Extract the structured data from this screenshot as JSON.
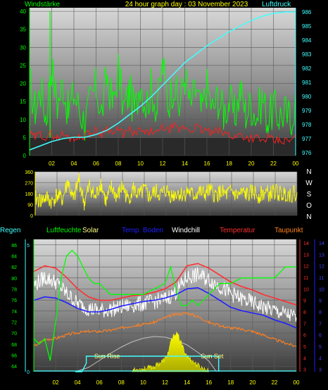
{
  "chart_data": [
    {
      "id": "wind_pressure",
      "type": "line",
      "title": "24 hour graph day : 03 November 2023",
      "left_label": "Windstärke",
      "right_label": "Luftdruck",
      "x_ticks": [
        "02",
        "04",
        "06",
        "08",
        "10",
        "12",
        "14",
        "16",
        "18",
        "20",
        "22",
        "00"
      ],
      "y_left_ticks": [
        0,
        5,
        10,
        15,
        20,
        25,
        30,
        35,
        40
      ],
      "y_left_range": [
        0,
        41
      ],
      "y_right_ticks": [
        976,
        977,
        978,
        979,
        980,
        981,
        982,
        983,
        984,
        985,
        986
      ],
      "y_right_range": [
        975.8,
        986.3
      ],
      "series": [
        {
          "kind": "wind_gust",
          "color": "#00ff00",
          "x": [
            0,
            0.5,
            1,
            1.5,
            2,
            2.5,
            3,
            3.5,
            4,
            4.5,
            5,
            5.5,
            6,
            6.5,
            7,
            7.5,
            8,
            8.5,
            9,
            9.5,
            10,
            10.5,
            11,
            11.5,
            12,
            12.5,
            13,
            13.5,
            14,
            14.5,
            15,
            15.5,
            16,
            16.5,
            17,
            17.5,
            18,
            18.5,
            19,
            19.5,
            20,
            20.5,
            21,
            21.5,
            22,
            22.5,
            23,
            23.5,
            24
          ],
          "y": [
            20,
            13,
            18,
            11,
            25,
            14,
            20,
            12,
            17,
            13,
            9,
            15,
            19,
            12,
            22,
            14,
            24,
            13,
            18,
            12,
            21,
            14,
            19,
            13,
            25,
            15,
            20,
            13,
            22,
            14,
            18,
            12,
            19,
            13,
            16,
            12,
            15,
            11,
            18,
            12,
            14,
            11,
            16,
            10,
            13,
            11,
            12,
            10,
            15
          ]
        },
        {
          "kind": "wind_avg",
          "color": "#ff2020",
          "x": [
            0,
            0.5,
            1,
            1.5,
            2,
            2.5,
            3,
            3.5,
            4,
            4.5,
            5,
            5.5,
            6,
            6.5,
            7,
            7.5,
            8,
            8.5,
            9,
            9.5,
            10,
            10.5,
            11,
            11.5,
            12,
            12.5,
            13,
            13.5,
            14,
            14.5,
            15,
            15.5,
            16,
            16.5,
            17,
            17.5,
            18,
            18.5,
            19,
            19.5,
            20,
            20.5,
            21,
            21.5,
            22,
            22.5,
            23,
            23.5,
            24
          ],
          "y": [
            6,
            5,
            6,
            5,
            6,
            5,
            6,
            5,
            5,
            5,
            6,
            6,
            7,
            6,
            8,
            6,
            7,
            6,
            7,
            6,
            7,
            6,
            7,
            6,
            8,
            7,
            8,
            7,
            8,
            7,
            8,
            7,
            7,
            6,
            7,
            6,
            6,
            5,
            6,
            5,
            5,
            5,
            4,
            5,
            4,
            4,
            4,
            4,
            5
          ]
        },
        {
          "kind": "pressure",
          "color": "#40ffff",
          "x": [
            0,
            1,
            2,
            3,
            4,
            5,
            6,
            7,
            8,
            9,
            10,
            11,
            12,
            13,
            14,
            15,
            16,
            17,
            18,
            19,
            20,
            21,
            22,
            23,
            24
          ],
          "y": [
            976.2,
            976.5,
            976.8,
            977.0,
            977.1,
            977.1,
            977.3,
            977.6,
            978.1,
            978.7,
            979.3,
            980.0,
            980.8,
            981.6,
            982.4,
            983.0,
            983.6,
            984.1,
            984.6,
            985.0,
            985.4,
            985.7,
            985.9,
            986.0,
            986.0
          ]
        }
      ]
    },
    {
      "id": "wind_direction",
      "type": "line",
      "y_ticks": [
        0,
        90,
        180,
        270,
        360
      ],
      "y_range": [
        0,
        360
      ],
      "right_labels": [
        "N",
        "W",
        "S",
        "O",
        "N"
      ],
      "series": [
        {
          "kind": "direction",
          "color": "#ffff00",
          "x": [
            0,
            0.5,
            1,
            1.5,
            2,
            2.5,
            3,
            3.5,
            4,
            4.5,
            5,
            5.5,
            6,
            6.5,
            7,
            7.5,
            8,
            8.5,
            9,
            9.5,
            10,
            10.5,
            11,
            11.5,
            12,
            12.5,
            13,
            13.5,
            14,
            14.5,
            15,
            15.5,
            16,
            16.5,
            17,
            17.5,
            18,
            18.5,
            19,
            19.5,
            20,
            20.5,
            21,
            21.5,
            22,
            22.5,
            23,
            23.5,
            24
          ],
          "y": [
            140,
            120,
            150,
            110,
            170,
            130,
            280,
            120,
            300,
            100,
            250,
            140,
            270,
            110,
            230,
            150,
            240,
            130,
            220,
            160,
            210,
            150,
            200,
            170,
            210,
            160,
            190,
            170,
            200,
            160,
            195,
            175,
            205,
            165,
            190,
            170,
            200,
            160,
            185,
            170,
            195,
            165,
            190,
            175,
            200,
            170,
            185,
            175,
            190
          ]
        }
      ]
    },
    {
      "id": "temp_hum",
      "type": "line",
      "legend": [
        "Regen",
        "Luftfeuchte",
        "Solar",
        "Temp. Boden",
        "Windchill",
        "Temperatur",
        "Taupunkt"
      ],
      "legend_colors": [
        "#40ffff",
        "#00ff00",
        "#ffff80",
        "#2020ff",
        "#ffffff",
        "#ff3030",
        "#ff8020"
      ],
      "x_ticks": [
        "02",
        "04",
        "06",
        "08",
        "10",
        "12",
        "14",
        "16",
        "18",
        "20",
        "22",
        "00"
      ],
      "y_left_ticks": [
        64,
        66,
        68,
        70,
        72,
        74,
        76,
        78,
        80,
        82,
        84,
        86
      ],
      "y_left_range": [
        63,
        87
      ],
      "y_rain_ticks": [
        0,
        5
      ],
      "y_right_ticks": [
        3,
        4,
        5,
        6,
        7,
        8,
        9,
        10,
        11,
        12,
        13,
        14
      ],
      "y_right_range": [
        2.8,
        14.3
      ],
      "y_far_ticks": [
        3,
        4,
        5,
        6,
        7,
        8,
        9,
        10,
        11,
        12,
        13,
        14
      ],
      "annotations": [
        "Sun Rise",
        "Sun Set"
      ],
      "series": [
        {
          "kind": "temperature",
          "color": "#ff3030",
          "x": [
            0,
            1,
            2,
            3,
            4,
            5,
            6,
            7,
            8,
            9,
            10,
            11,
            12,
            13,
            14,
            15,
            16,
            17,
            18,
            19,
            20,
            21,
            22,
            23,
            24
          ],
          "y": [
            11.5,
            12.0,
            11.8,
            11.0,
            10.0,
            9.3,
            9.0,
            9.0,
            9.2,
            9.4,
            9.5,
            9.7,
            10.0,
            10.6,
            12.0,
            12.2,
            11.8,
            11.2,
            10.6,
            10.2,
            9.9,
            9.5,
            9.2,
            8.9,
            8.6
          ]
        },
        {
          "kind": "windchill",
          "color": "#ffffff",
          "x": [
            0,
            1,
            2,
            3,
            4,
            5,
            6,
            7,
            8,
            9,
            10,
            11,
            12,
            13,
            14,
            15,
            16,
            17,
            18,
            19,
            20,
            21,
            22,
            23,
            24
          ],
          "y": [
            10.3,
            11.0,
            10.6,
            9.6,
            8.7,
            8.3,
            8.1,
            8.2,
            8.4,
            8.6,
            8.7,
            8.9,
            9.1,
            9.7,
            11.0,
            11.2,
            10.8,
            10.2,
            9.6,
            9.1,
            8.8,
            8.4,
            8.1,
            7.8,
            7.5
          ]
        },
        {
          "kind": "soil_temp",
          "color": "#2020ff",
          "x": [
            0,
            1,
            2,
            3,
            4,
            5,
            6,
            7,
            8,
            9,
            10,
            11,
            12,
            13,
            14,
            15,
            16,
            17,
            18,
            19,
            20,
            21,
            22,
            23,
            24
          ],
          "y": [
            9.0,
            9.3,
            9.2,
            8.8,
            8.3,
            8.0,
            8.0,
            8.2,
            8.5,
            8.7,
            8.9,
            9.0,
            9.2,
            9.5,
            10.0,
            10.1,
            9.6,
            9.0,
            8.4,
            8.1,
            7.9,
            7.7,
            7.3,
            7.0,
            6.6
          ]
        },
        {
          "kind": "dewpoint",
          "color": "#ff8020",
          "x": [
            0,
            1,
            2,
            3,
            4,
            5,
            6,
            7,
            8,
            9,
            10,
            11,
            12,
            13,
            14,
            15,
            16,
            17,
            18,
            19,
            20,
            21,
            22,
            23,
            24
          ],
          "y": [
            5.0,
            5.6,
            5.7,
            6.0,
            6.2,
            6.3,
            6.3,
            6.4,
            6.6,
            6.8,
            6.9,
            7.1,
            7.5,
            7.8,
            7.9,
            7.6,
            7.1,
            6.8,
            6.6,
            6.5,
            6.3,
            6.0,
            5.6,
            5.3,
            5.0
          ]
        },
        {
          "kind": "humidity",
          "color": "#00ff00",
          "x": [
            0,
            0.5,
            1,
            1.5,
            2,
            2.5,
            3,
            3.5,
            4,
            4.5,
            5,
            5.5,
            6,
            6.5,
            7,
            7.5,
            8,
            9,
            10,
            11,
            12,
            12.5,
            13,
            13.5,
            14,
            14.5,
            15,
            15.5,
            16,
            17,
            18,
            19,
            20,
            21,
            22,
            23,
            24
          ],
          "y": [
            69,
            68,
            69,
            65,
            72,
            80,
            84,
            85,
            84,
            82,
            80,
            79,
            79,
            78,
            77,
            77,
            77,
            77,
            77,
            78,
            79,
            82,
            78,
            75,
            75,
            76,
            75,
            76,
            77,
            79,
            79,
            80,
            80,
            80,
            80,
            82,
            82
          ]
        },
        {
          "kind": "solar_theory",
          "color": "#c0c0c0",
          "x": [
            3.8,
            5,
            6,
            7,
            8,
            9,
            10,
            11,
            12,
            13,
            14,
            15,
            16,
            16.7
          ],
          "y": [
            0,
            0.12,
            0.32,
            0.52,
            0.7,
            0.85,
            0.95,
            1.0,
            0.98,
            0.9,
            0.76,
            0.55,
            0.3,
            0
          ]
        },
        {
          "kind": "solar",
          "color": "#ffff00",
          "x": [
            9,
            10,
            11,
            12,
            12.3,
            12.6,
            13,
            13.3,
            13.6,
            14,
            14.5,
            15,
            15.5,
            16
          ],
          "y": [
            0.04,
            0.08,
            0.14,
            0.35,
            0.55,
            0.9,
            1.1,
            0.95,
            0.7,
            0.45,
            0.3,
            0.18,
            0.08,
            0.02
          ]
        },
        {
          "kind": "sun",
          "color": "#40ffff",
          "sunrise": 4.8,
          "sunset": 16.9
        }
      ]
    }
  ]
}
